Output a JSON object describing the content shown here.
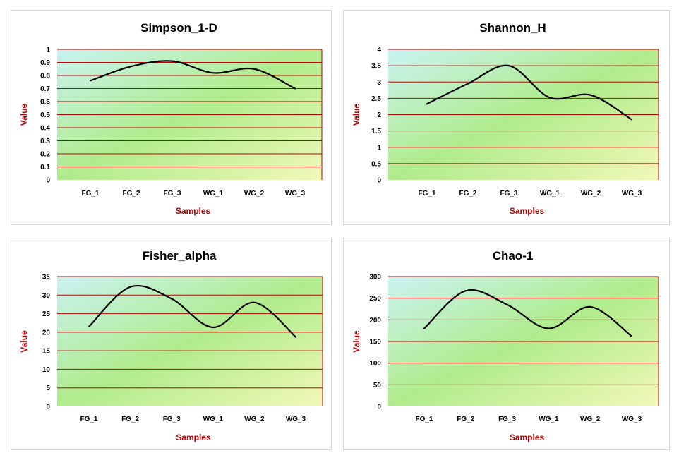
{
  "colors": {
    "gridline": "#c00000",
    "line": "#000000",
    "axis_label": "#c00000",
    "plot_gradient": [
      "#c9f3f3",
      "#b0ec8c",
      "#f2f8b8"
    ]
  },
  "chart_data": [
    {
      "type": "line",
      "title": "Simpson_1-D",
      "xlabel": "Samples",
      "ylabel": "Value",
      "categories": [
        "FG_1",
        "FG_2",
        "FG_3",
        "WG_1",
        "WG_2",
        "WG_3"
      ],
      "values": [
        0.76,
        0.87,
        0.91,
        0.82,
        0.85,
        0.7
      ],
      "ylim": [
        0,
        1
      ],
      "yticks": [
        "0",
        "0.1",
        "0.2",
        "0.3",
        "0.4",
        "0.5",
        "0.6",
        "0.7",
        "0.8",
        "0.9",
        "1"
      ],
      "ytick_values": [
        0,
        0.1,
        0.2,
        0.3,
        0.4,
        0.5,
        0.6,
        0.7,
        0.8,
        0.9,
        1
      ],
      "smooth": true,
      "grid": true
    },
    {
      "type": "line",
      "title": "Shannon_H",
      "xlabel": "Samples",
      "ylabel": "Value",
      "categories": [
        "FG_1",
        "FG_2",
        "FG_3",
        "WG_1",
        "WG_2",
        "WG_3"
      ],
      "values": [
        2.33,
        2.95,
        3.5,
        2.52,
        2.6,
        1.85
      ],
      "ylim": [
        0,
        4
      ],
      "yticks": [
        "0",
        "0.5",
        "1",
        "1.5",
        "2",
        "2.5",
        "3",
        "3.5",
        "4"
      ],
      "ytick_values": [
        0,
        0.5,
        1,
        1.5,
        2,
        2.5,
        3,
        3.5,
        4
      ],
      "smooth": true,
      "grid": true
    },
    {
      "type": "line",
      "title": "Fisher_alpha",
      "xlabel": "Samples",
      "ylabel": "Value",
      "categories": [
        "FG_1",
        "FG_2",
        "FG_3",
        "WG_1",
        "WG_2",
        "WG_3"
      ],
      "values": [
        21.5,
        32.2,
        29.0,
        21.3,
        28.0,
        18.7
      ],
      "ylim": [
        0,
        35
      ],
      "yticks": [
        "0",
        "5",
        "10",
        "15",
        "20",
        "25",
        "30",
        "35"
      ],
      "ytick_values": [
        0,
        5,
        10,
        15,
        20,
        25,
        30,
        35
      ],
      "smooth": true,
      "grid": true
    },
    {
      "type": "line",
      "title": "Chao-1",
      "xlabel": "Samples",
      "ylabel": "Value",
      "categories": [
        "FG_1",
        "FG_2",
        "FG_3",
        "WG_1",
        "WG_2",
        "WG_3"
      ],
      "values": [
        180,
        267,
        235,
        180,
        230,
        162
      ],
      "ylim": [
        0,
        300
      ],
      "yticks": [
        "0",
        "50",
        "100",
        "150",
        "200",
        "250",
        "300"
      ],
      "ytick_values": [
        0,
        50,
        100,
        150,
        200,
        250,
        300
      ],
      "smooth": true,
      "grid": true
    }
  ]
}
